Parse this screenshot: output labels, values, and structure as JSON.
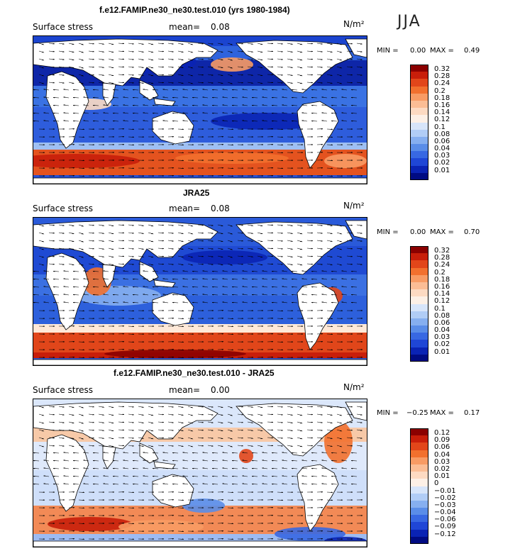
{
  "season": "JJA",
  "panels": [
    {
      "title": "f.e12.FAMIP.ne30_ne30.test.010 (yrs 1980-1984)",
      "left_label": "Surface stress",
      "mean_label": "mean=",
      "mean_value": "0.08",
      "units": "N/m²",
      "min_label": "MIN =",
      "min_value": "0.00",
      "max_label": "MAX =",
      "max_value": "0.49",
      "levels": [
        "0.32",
        "0.28",
        "0.24",
        "0.2",
        "0.18",
        "0.16",
        "0.14",
        "0.12",
        "0.1",
        "0.08",
        "0.06",
        "0.04",
        "0.03",
        "0.02",
        "0.01"
      ],
      "colors": [
        "#8b0000",
        "#c81e0a",
        "#e2461a",
        "#f2702e",
        "#f89b64",
        "#fbbd95",
        "#fddac2",
        "#fdf0e6",
        "#d7e5fa",
        "#b1cdf6",
        "#86aff0",
        "#5a8de8",
        "#3868e2",
        "#1f46d6",
        "#0a23b4",
        "#000b82"
      ]
    },
    {
      "title": "JRA25",
      "left_label": "Surface stress",
      "mean_label": "mean=",
      "mean_value": "0.08",
      "units": "N/m²",
      "min_label": "MIN =",
      "min_value": "0.00",
      "max_label": "MAX =",
      "max_value": "0.70",
      "levels": [
        "0.32",
        "0.28",
        "0.24",
        "0.2",
        "0.18",
        "0.16",
        "0.14",
        "0.12",
        "0.1",
        "0.08",
        "0.06",
        "0.04",
        "0.03",
        "0.02",
        "0.01"
      ],
      "colors": [
        "#8b0000",
        "#c81e0a",
        "#e2461a",
        "#f2702e",
        "#f89b64",
        "#fbbd95",
        "#fddac2",
        "#fdf0e6",
        "#d7e5fa",
        "#b1cdf6",
        "#86aff0",
        "#5a8de8",
        "#3868e2",
        "#1f46d6",
        "#0a23b4",
        "#000b82"
      ]
    },
    {
      "title": "f.e12.FAMIP.ne30_ne30.test.010 - JRA25",
      "left_label": "Surface stress",
      "mean_label": "mean=",
      "mean_value": "0.00",
      "units": "N/m²",
      "min_label": "MIN =",
      "min_value": "−0.25",
      "max_label": "MAX =",
      "max_value": "0.17",
      "levels": [
        "0.12",
        "0.09",
        "0.06",
        "0.04",
        "0.03",
        "0.02",
        "0.01",
        "0",
        "−0.01",
        "−0.02",
        "−0.03",
        "−0.04",
        "−0.06",
        "−0.09",
        "−0.12"
      ],
      "colors": [
        "#8b0000",
        "#c81e0a",
        "#e2461a",
        "#f2702e",
        "#f89b64",
        "#fbbd95",
        "#fddac2",
        "#fdf0e6",
        "#d7e5fa",
        "#b1cdf6",
        "#86aff0",
        "#5a8de8",
        "#3868e2",
        "#1f46d6",
        "#0a23b4",
        "#000b82"
      ]
    }
  ]
}
